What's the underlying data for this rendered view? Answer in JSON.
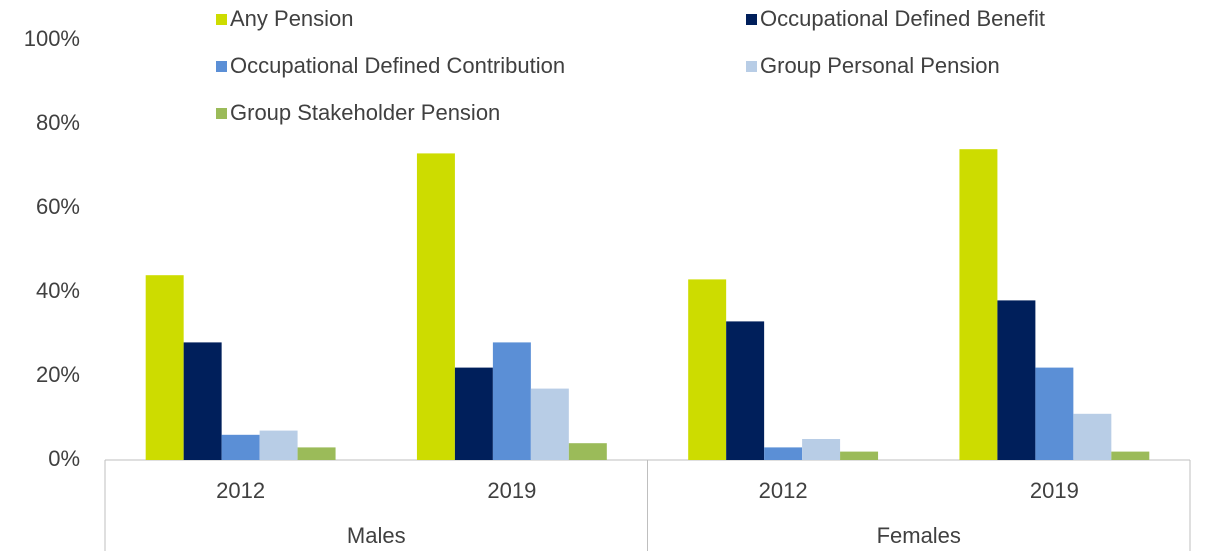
{
  "chart_data": {
    "type": "bar",
    "groups": [
      {
        "name": "Males",
        "categories": [
          "2012",
          "2019"
        ]
      },
      {
        "name": "Females",
        "categories": [
          "2012",
          "2019"
        ]
      }
    ],
    "series": [
      {
        "name": "Any Pension",
        "color": "#cddc00",
        "values": [
          44,
          73,
          43,
          74
        ]
      },
      {
        "name": "Occupational Defined Benefit",
        "color": "#001f5b",
        "values": [
          28,
          22,
          33,
          38
        ]
      },
      {
        "name": "Occupational Defined Contribution",
        "color": "#5b8fd6",
        "values": [
          6,
          28,
          3,
          22
        ]
      },
      {
        "name": "Group Personal Pension",
        "color": "#b8cde6",
        "values": [
          7,
          17,
          5,
          11
        ]
      },
      {
        "name": "Group Stakeholder Pension",
        "color": "#9bbb59",
        "values": [
          3,
          4,
          2,
          2
        ]
      }
    ],
    "ylim": [
      0,
      100
    ],
    "yticks": [
      {
        "value": 0,
        "label": "0%"
      },
      {
        "value": 20,
        "label": "20%"
      },
      {
        "value": 40,
        "label": "40%"
      },
      {
        "value": 60,
        "label": "60%"
      },
      {
        "value": 80,
        "label": "80%"
      },
      {
        "value": 100,
        "label": "100%"
      }
    ],
    "grid": false
  }
}
